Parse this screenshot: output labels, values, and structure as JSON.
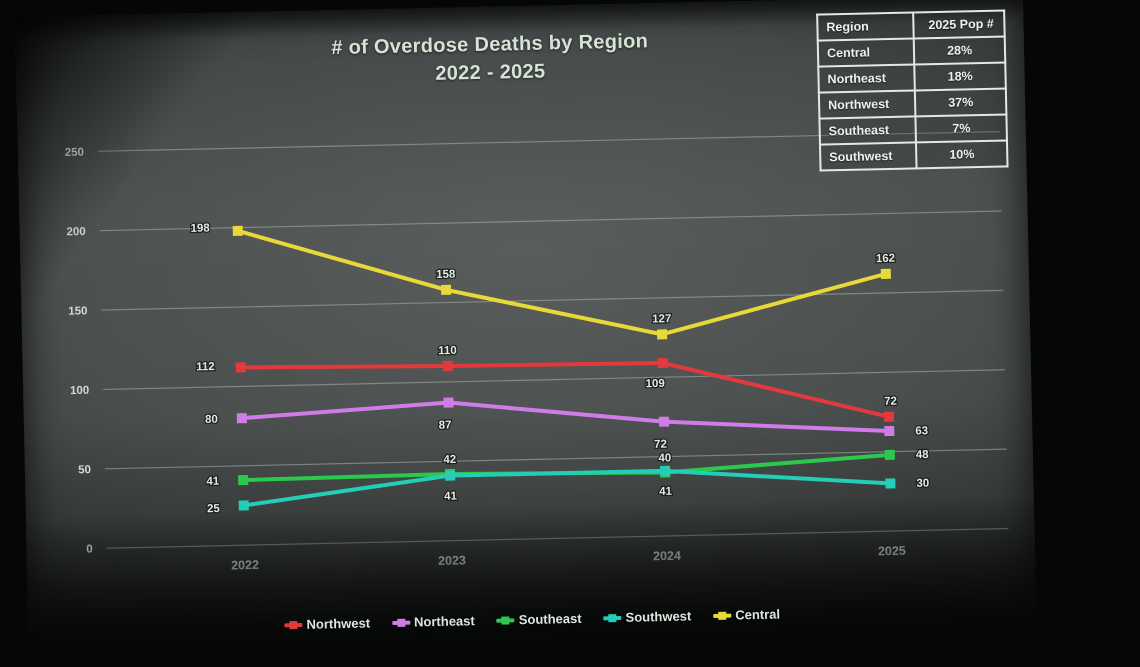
{
  "title": {
    "line1": "# of Overdose Deaths by Region",
    "line2": "2022 - 2025"
  },
  "pop_table": {
    "headers": [
      "Region",
      "2025 Pop #"
    ],
    "rows": [
      {
        "region": "Central",
        "pop": "28%"
      },
      {
        "region": "Northeast",
        "pop": "18%"
      },
      {
        "region": "Northwest",
        "pop": "37%"
      },
      {
        "region": "Southeast",
        "pop": "7%"
      },
      {
        "region": "Southwest",
        "pop": "10%"
      }
    ]
  },
  "chart_data": {
    "type": "line",
    "title": "# of Overdose Deaths by Region 2022 - 2025",
    "x": [
      "2022",
      "2023",
      "2024",
      "2025"
    ],
    "series": [
      {
        "name": "Northwest",
        "color": "#e23a3c",
        "values": [
          112,
          110,
          109,
          72
        ]
      },
      {
        "name": "Northeast",
        "color": "#d07ce6",
        "values": [
          80,
          87,
          72,
          63
        ]
      },
      {
        "name": "Southeast",
        "color": "#2bc94e",
        "values": [
          41,
          42,
          40,
          48
        ]
      },
      {
        "name": "Southwest",
        "color": "#24cdb8",
        "values": [
          25,
          41,
          41,
          30
        ]
      },
      {
        "name": "Central",
        "color": "#e7d93a",
        "values": [
          198,
          158,
          127,
          162
        ]
      }
    ],
    "ylim": [
      0,
      250
    ],
    "yticks": [
      0,
      50,
      100,
      150,
      200,
      250
    ],
    "grid": true,
    "legend_position": "bottom",
    "colors": {
      "grid": "#aab3ae",
      "tick_text": "#cfdccf",
      "data_label_text": "#e2ebe2"
    }
  }
}
